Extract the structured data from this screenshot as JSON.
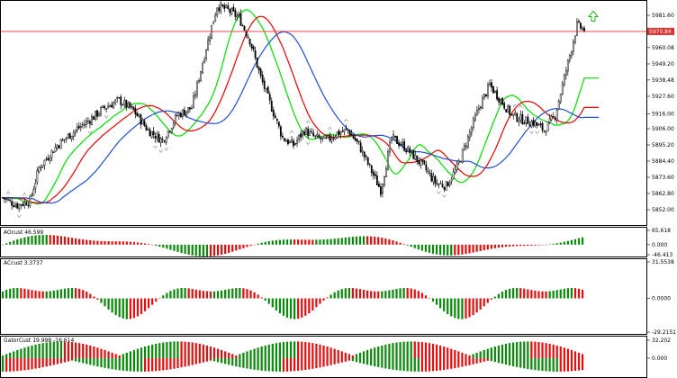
{
  "colors": {
    "up_bar": "#0a8a0a",
    "down_bar": "#e01010",
    "ma_fast": "#00dd00",
    "ma_mid": "#ee0000",
    "ma_slow": "#1f4fd1",
    "candle": "#000000",
    "fractal": "#a0a0a0",
    "current_price": "#e03030",
    "signal_arrow": "#00aa00"
  },
  "chart_data": [
    {
      "type": "candlestick",
      "panel": "price",
      "ylim": [
        5843.0,
        5990.0
      ],
      "y_ticks": [
        "5981.60",
        "5970.84",
        "5960.08",
        "5949.20",
        "5938.48",
        "5927.60",
        "5916.00",
        "5906.00",
        "5895.20",
        "5884.40",
        "5873.60",
        "5862.80",
        "5852.00"
      ],
      "current_price": 5970.84,
      "current_price_label": "5970.84",
      "series_ma": [
        "fast",
        "mid",
        "slow"
      ],
      "candles": []
    },
    {
      "type": "bar",
      "panel": "osc1",
      "label": "AOcust 46.599",
      "ylim": [
        -46.413,
        65.618
      ],
      "y_ticks": [
        "65.618",
        "0.000",
        "-46.413"
      ],
      "values": []
    },
    {
      "type": "bar",
      "panel": "osc2",
      "label": "ACcust 3.3737",
      "ylim": [
        -29.2151,
        31.5538
      ],
      "y_ticks": [
        "31.5538",
        "0.0000",
        "-29.2151"
      ],
      "values": []
    },
    {
      "type": "bar",
      "panel": "osc3",
      "label": "GatorCust 19.998 -16.614",
      "ylim": [
        -32.202,
        32.202
      ],
      "y_ticks": [
        "32.202",
        "0.000"
      ],
      "upper": [],
      "lower": []
    }
  ]
}
